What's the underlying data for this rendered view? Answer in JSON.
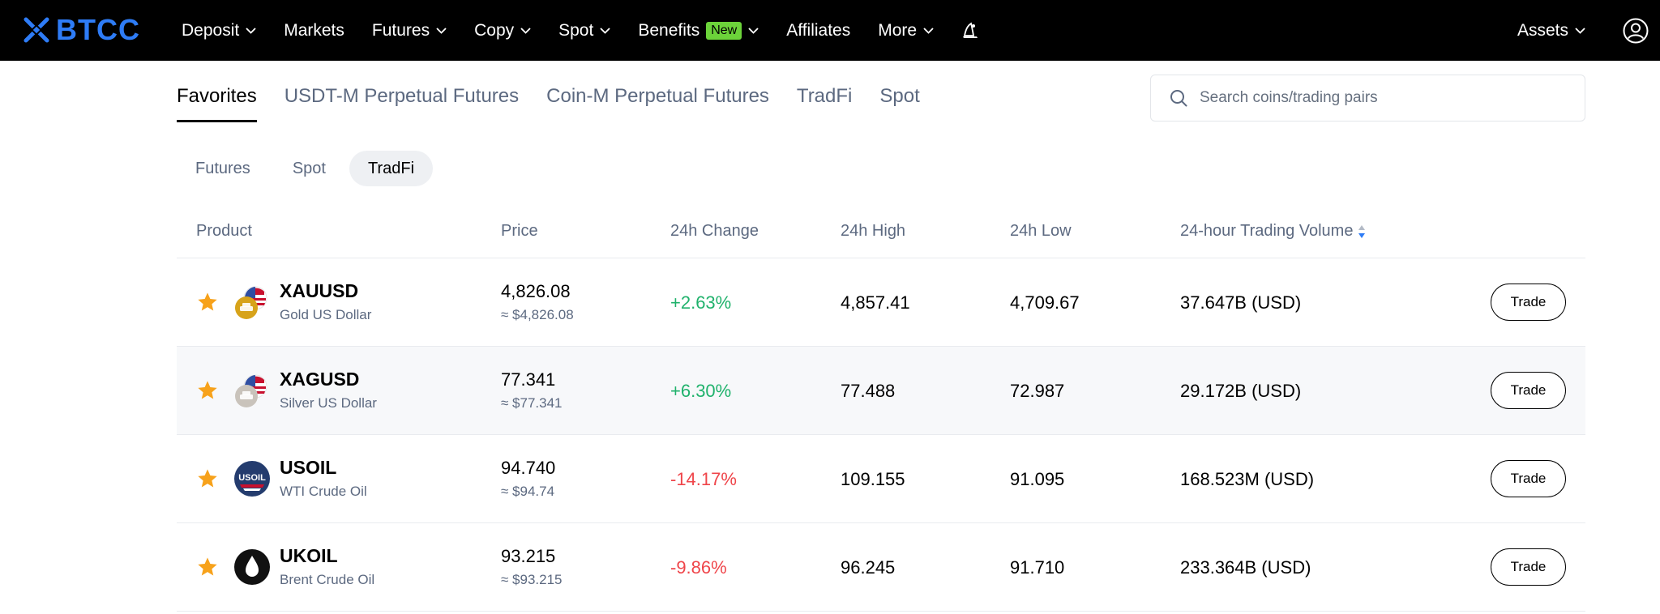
{
  "header": {
    "logo_text": "BTCC",
    "nav": [
      {
        "label": "Deposit",
        "dropdown": true
      },
      {
        "label": "Markets",
        "dropdown": false
      },
      {
        "label": "Futures",
        "dropdown": true
      },
      {
        "label": "Copy",
        "dropdown": true
      },
      {
        "label": "Spot",
        "dropdown": true
      },
      {
        "label": "Benefits",
        "badge": "New",
        "dropdown": true
      },
      {
        "label": "Affiliates",
        "dropdown": false
      },
      {
        "label": "More",
        "dropdown": true
      }
    ],
    "assets_label": "Assets"
  },
  "tabs": [
    "Favorites",
    "USDT-M Perpetual Futures",
    "Coin-M Perpetual Futures",
    "TradFi",
    "Spot"
  ],
  "active_tab": 0,
  "search": {
    "placeholder": "Search coins/trading pairs"
  },
  "sub_tabs": [
    "Futures",
    "Spot",
    "TradFi"
  ],
  "active_sub_tab": 2,
  "table": {
    "columns": [
      "Product",
      "Price",
      "24h Change",
      "24h High",
      "24h Low",
      "24-hour Trading Volume"
    ],
    "trade_label": "Trade",
    "rows": [
      {
        "symbol": "XAUUSD",
        "name": "Gold US Dollar",
        "price": "4,826.08",
        "usd": "≈ $4,826.08",
        "change": "+2.63%",
        "high": "4,857.41",
        "low": "4,709.67",
        "volume": "37.647B  (USD)",
        "icon": "gold-coin-icon"
      },
      {
        "symbol": "XAGUSD",
        "name": "Silver US Dollar",
        "price": "77.341",
        "usd": "≈ $77.341",
        "change": "+6.30%",
        "high": "77.488",
        "low": "72.987",
        "volume": "29.172B  (USD)",
        "icon": "silver-coin-icon"
      },
      {
        "symbol": "USOIL",
        "name": "WTI Crude Oil",
        "price": "94.740",
        "usd": "≈ $94.74",
        "change": "-14.17%",
        "high": "109.155",
        "low": "91.095",
        "volume": "168.523M  (USD)",
        "icon": "usoil-icon",
        "icon_text": "USOIL"
      },
      {
        "symbol": "UKOIL",
        "name": "Brent Crude Oil",
        "price": "93.215",
        "usd": "≈ $93.215",
        "change": "-9.86%",
        "high": "96.245",
        "low": "91.710",
        "volume": "233.364B  (USD)",
        "icon": "oil-drop-icon"
      }
    ]
  },
  "colors": {
    "positive": "#20b26c",
    "negative": "#ef454a",
    "star": "#f7a21b",
    "brand": "#2e7cf6"
  }
}
